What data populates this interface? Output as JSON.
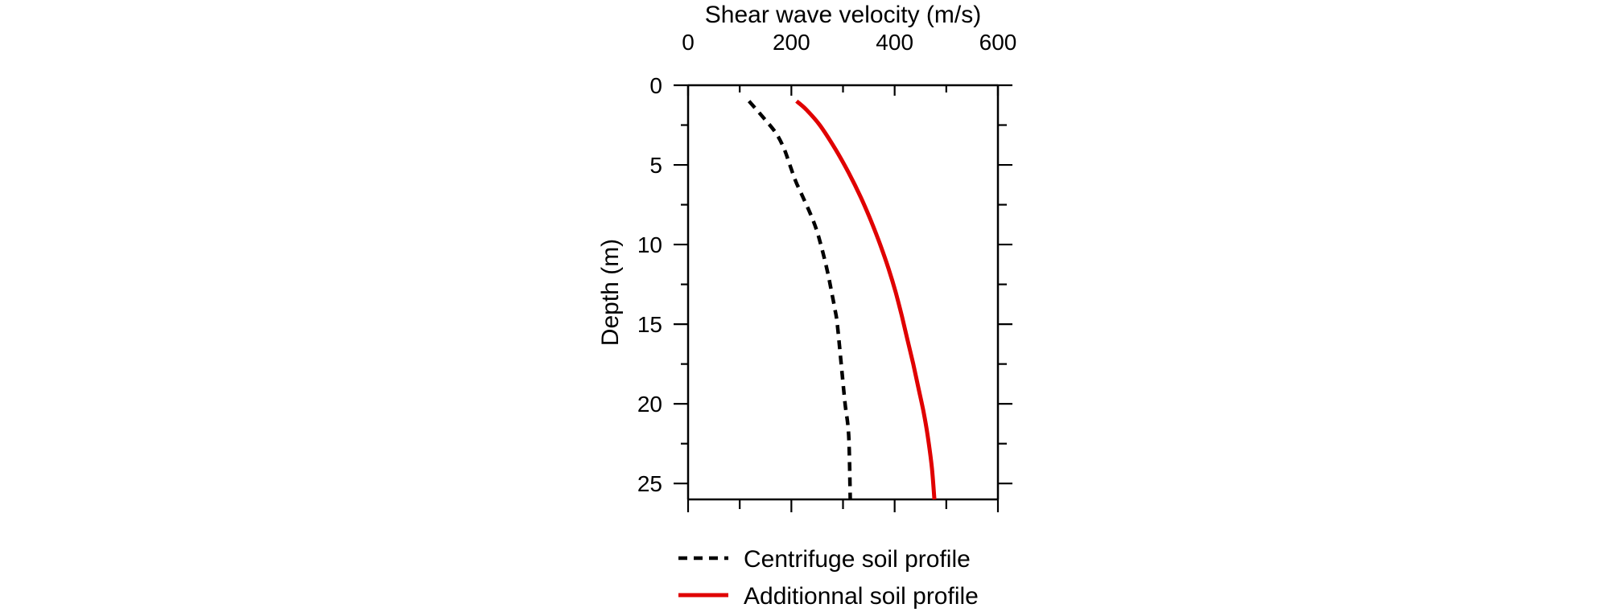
{
  "chart_data": {
    "type": "line",
    "title": "",
    "xlabel": "Shear wave velocity (m/s)",
    "ylabel": "Depth (m)",
    "xlim": [
      0,
      600
    ],
    "ylim": [
      0,
      26
    ],
    "y_inverted": true,
    "x_axis_position": "top",
    "x_ticks": [
      0,
      200,
      400,
      600
    ],
    "x_tick_labels": [
      "0",
      "200",
      "400",
      "600"
    ],
    "y_ticks": [
      0,
      5,
      10,
      15,
      20,
      25
    ],
    "y_tick_labels": [
      "0",
      "5",
      "10",
      "15",
      "20",
      "25"
    ],
    "grid": false,
    "legend_position": "bottom",
    "series": [
      {
        "name": "Centrifuge soil profile",
        "style": "dashed",
        "color": "#000000",
        "x": [
          118,
          145,
          170,
          186,
          197,
          208,
          222,
          236,
          248,
          257,
          265,
          272,
          278,
          284,
          289,
          298,
          304,
          311,
          314
        ],
        "y": [
          1,
          2,
          3,
          4,
          5,
          6,
          7,
          8,
          9,
          10,
          11,
          12,
          13,
          14,
          15,
          18,
          20,
          22,
          26
        ]
      },
      {
        "name": "Additionnal soil profile",
        "style": "solid",
        "color": "#e00000",
        "x": [
          210,
          228,
          255,
          285,
          311,
          334,
          354,
          372,
          388,
          402,
          414,
          425,
          436,
          446,
          456,
          464,
          472,
          477
        ],
        "y": [
          1,
          1.5,
          2.5,
          4,
          5.5,
          7,
          8.5,
          10,
          11.5,
          13,
          14.5,
          16,
          17.5,
          19,
          20.5,
          22,
          24,
          26
        ]
      }
    ]
  }
}
